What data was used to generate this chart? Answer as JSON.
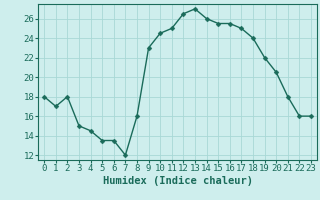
{
  "x": [
    0,
    1,
    2,
    3,
    4,
    5,
    6,
    7,
    8,
    9,
    10,
    11,
    12,
    13,
    14,
    15,
    16,
    17,
    18,
    19,
    20,
    21,
    22,
    23
  ],
  "y": [
    18,
    17,
    18,
    15,
    14.5,
    13.5,
    13.5,
    12,
    16,
    23,
    24.5,
    25,
    26.5,
    27,
    26,
    25.5,
    25.5,
    25,
    24,
    22,
    20.5,
    18,
    16,
    16
  ],
  "line_color": "#1a6b5a",
  "marker_color": "#1a6b5a",
  "bg_color": "#ceeeed",
  "grid_color": "#a8d8d6",
  "xlabel": "Humidex (Indice chaleur)",
  "xlim": [
    -0.5,
    23.5
  ],
  "ylim": [
    11.5,
    27.5
  ],
  "yticks": [
    12,
    14,
    16,
    18,
    20,
    22,
    24,
    26
  ],
  "xtick_labels": [
    "0",
    "1",
    "2",
    "3",
    "4",
    "5",
    "6",
    "7",
    "8",
    "9",
    "10",
    "11",
    "12",
    "13",
    "14",
    "15",
    "16",
    "17",
    "18",
    "19",
    "20",
    "21",
    "22",
    "23"
  ],
  "xlabel_fontsize": 7.5,
  "tick_fontsize": 6.5,
  "marker_size": 2.5,
  "linewidth": 1.0
}
